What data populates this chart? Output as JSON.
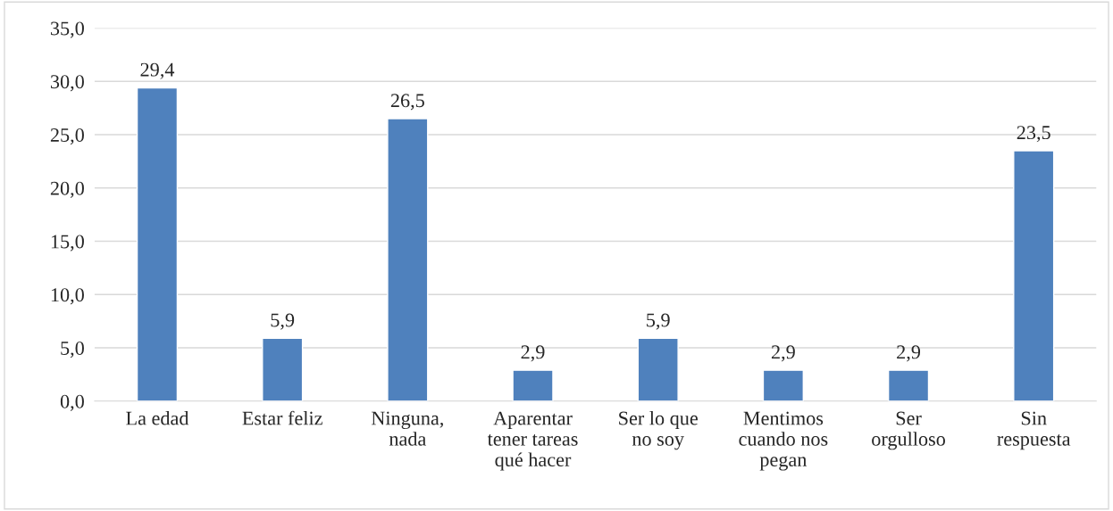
{
  "chart_data": {
    "type": "bar",
    "categories": [
      "La edad",
      "Estar feliz",
      "Ninguna,\nnada",
      "Aparentar\ntener tareas\nqué hacer",
      "Ser lo que\nno soy",
      "Mentimos\ncuando nos\npegan",
      "Ser\norgulloso",
      "Sin\nrespuesta"
    ],
    "values": [
      29.4,
      5.9,
      26.5,
      2.9,
      5.9,
      2.9,
      2.9,
      23.5
    ],
    "value_labels": [
      "29,4",
      "5,9",
      "26,5",
      "2,9",
      "5,9",
      "2,9",
      "2,9",
      "23,5"
    ],
    "color": "#4f81bd",
    "ylim": [
      0,
      35
    ],
    "yticks": [
      {
        "value": 0,
        "label": "0,0"
      },
      {
        "value": 5,
        "label": "5,0"
      },
      {
        "value": 10,
        "label": "10,0"
      },
      {
        "value": 15,
        "label": "15,0"
      },
      {
        "value": 20,
        "label": "20,0"
      },
      {
        "value": 25,
        "label": "25,0"
      },
      {
        "value": 30,
        "label": "30,0"
      },
      {
        "value": 35,
        "label": "35,0"
      }
    ],
    "grid": "y"
  }
}
